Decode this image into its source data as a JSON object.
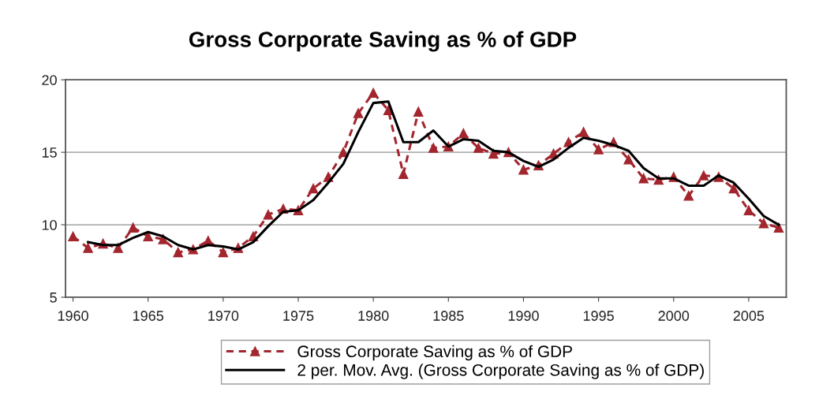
{
  "chart_data": {
    "type": "line",
    "title": "Gross Corporate Saving as % of GDP",
    "x": [
      1960,
      1961,
      1962,
      1963,
      1964,
      1965,
      1966,
      1967,
      1968,
      1969,
      1970,
      1971,
      1972,
      1973,
      1974,
      1975,
      1976,
      1977,
      1978,
      1979,
      1980,
      1981,
      1982,
      1983,
      1984,
      1985,
      1986,
      1987,
      1988,
      1989,
      1990,
      1991,
      1992,
      1993,
      1994,
      1995,
      1996,
      1997,
      1998,
      1999,
      2000,
      2001,
      2002,
      2003,
      2004,
      2005,
      2006,
      2007
    ],
    "xlim": [
      1959.5,
      2007.5
    ],
    "xticks": [
      1960,
      1965,
      1970,
      1975,
      1980,
      1985,
      1990,
      1995,
      2000,
      2005
    ],
    "ylim": [
      5,
      20
    ],
    "yticks": [
      5,
      10,
      15,
      20
    ],
    "grid": "y",
    "legend": "bottom",
    "series": [
      {
        "name": "Gross Corporate Saving as % of GDP",
        "color": "#a3262e",
        "line_style": "dashed",
        "marker": "triangle",
        "values": [
          9.2,
          8.4,
          8.7,
          8.4,
          9.8,
          9.2,
          9.0,
          8.1,
          8.3,
          8.9,
          8.1,
          8.4,
          9.2,
          10.7,
          11.1,
          11.0,
          12.5,
          13.3,
          15.0,
          17.7,
          19.1,
          17.9,
          13.5,
          17.8,
          15.3,
          15.4,
          16.3,
          15.3,
          14.9,
          15.0,
          13.8,
          14.1,
          14.9,
          15.7,
          16.4,
          15.2,
          15.7,
          14.5,
          13.2,
          13.1,
          13.3,
          12.0,
          13.4,
          13.3,
          12.5,
          11.0,
          10.1,
          9.8
        ]
      },
      {
        "name": "2 per. Mov. Avg. (Gross Corporate Saving as % of GDP)",
        "color": "#000000",
        "line_style": "solid",
        "marker": "none",
        "values": [
          null,
          8.8,
          8.6,
          8.6,
          9.1,
          9.5,
          9.2,
          8.6,
          8.3,
          8.6,
          8.5,
          8.3,
          8.8,
          9.9,
          10.9,
          11.0,
          11.7,
          12.9,
          14.2,
          16.4,
          18.4,
          18.5,
          15.7,
          15.7,
          16.5,
          15.4,
          15.9,
          15.8,
          15.1,
          15.0,
          14.4,
          14.0,
          14.5,
          15.3,
          16.0,
          15.8,
          15.5,
          15.1,
          13.9,
          13.2,
          13.2,
          12.7,
          12.7,
          13.4,
          12.9,
          11.8,
          10.6,
          10.0
        ]
      }
    ]
  }
}
